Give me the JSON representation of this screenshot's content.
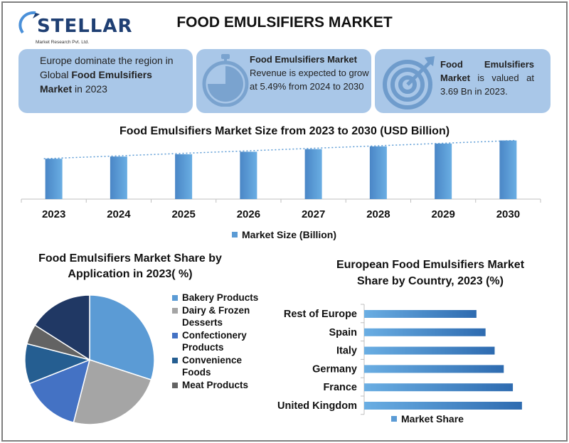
{
  "logo": {
    "name": "STELLAR",
    "subtitle": "Market Research Pvt. Ltd."
  },
  "header": {
    "title": "FOOD EMULSIFIERS MARKET"
  },
  "cards": {
    "card1": {
      "pre": "Europe dominate the region in Global ",
      "bold": "Food Emulsifiers Market",
      "post": " in 2023"
    },
    "card2": {
      "bold": "Food Emulsifiers Market",
      "text": "Revenue is expected to grow at 5.49% from 2024 to 2030"
    },
    "card3": {
      "bold": "Food Emulsifiers Market",
      "text": " is valued at 3.69 Bn in 2023."
    }
  },
  "colors": {
    "accent": "#5b9bd5",
    "card": "#a9c7e8",
    "dark_navy": "#1f3864"
  },
  "chart_data": [
    {
      "type": "bar",
      "title": "Food Emulsifiers Market Size from 2023 to 2030 (USD Billion)",
      "categories": [
        "2023",
        "2024",
        "2025",
        "2026",
        "2027",
        "2028",
        "2029",
        "2030"
      ],
      "series": [
        {
          "name": "Market Size (Billion)",
          "values": [
            3.69,
            3.89,
            4.1,
            4.33,
            4.57,
            4.82,
            5.08,
            5.36
          ]
        }
      ],
      "trendline": "dotted linear",
      "legend": "bottom",
      "ylim": [
        0,
        6.5
      ],
      "grid": false
    },
    {
      "type": "pie",
      "title": "Food Emulsifiers Market Share by Application in 2023( %)",
      "labels": [
        "Bakery Products",
        "Dairy & Frozen Desserts",
        "Confectionery Products",
        "Convenience Foods",
        "Meat Products"
      ],
      "values": [
        30,
        24,
        15,
        10,
        5
      ],
      "extra_slice": {
        "value": 16,
        "color": "#203864"
      },
      "colors": [
        "#5b9bd5",
        "#a5a5a5",
        "#4472c4",
        "#255e91",
        "#636363"
      ],
      "legend": "right"
    },
    {
      "type": "bar",
      "orientation": "horizontal",
      "title": "European Food Emulsifiers Market Share by Country, 2023 (%)",
      "categories": [
        "United Kingdom",
        "France",
        "Germany",
        "Italy",
        "Spain",
        "Rest of Europe"
      ],
      "series": [
        {
          "name": "Market Share",
          "values": [
            26,
            24.5,
            23,
            21.5,
            20,
            18.5
          ]
        }
      ],
      "xlim": [
        0,
        30
      ],
      "legend": "bottom",
      "grid": false
    }
  ]
}
